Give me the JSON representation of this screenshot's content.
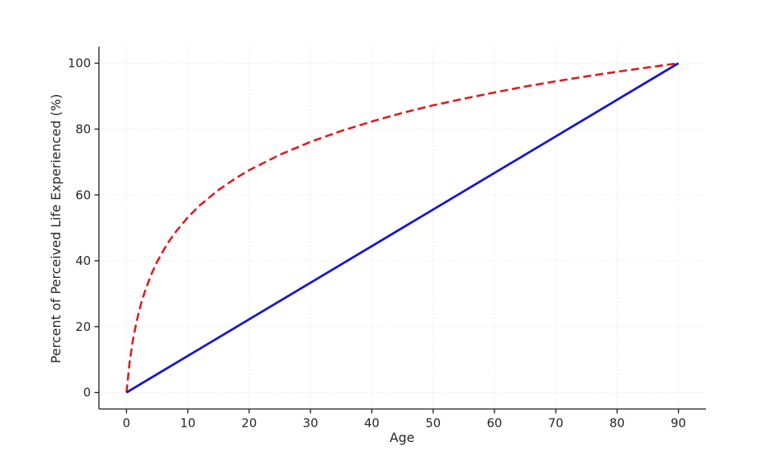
{
  "figure": {
    "background": "#ffffff",
    "text_color": "#262626",
    "spine_color": "#1a1a1a",
    "grid_color": "#e0e0e0"
  },
  "chart_data": {
    "type": "line",
    "title": "",
    "xlabel": "Age",
    "ylabel": "Percent of Perceived Life Experienced (%)",
    "xlim": [
      -4.5,
      94.5
    ],
    "ylim": [
      -5,
      105
    ],
    "xticks": [
      0,
      10,
      20,
      30,
      40,
      50,
      60,
      70,
      80,
      90
    ],
    "yticks": [
      0,
      20,
      40,
      60,
      80,
      100
    ],
    "grid": true,
    "grid_style": "dotted",
    "legend": "none",
    "series": [
      {
        "name": "red_dashed_log_perception_curve",
        "color": "#e01b1b",
        "style": "dashed",
        "width": 2.6,
        "x": [
          0,
          0.5,
          1,
          1.5,
          2,
          2.5,
          3,
          4,
          5,
          6,
          7,
          8,
          10,
          12,
          15,
          18,
          20,
          25,
          30,
          35,
          40,
          45,
          50,
          55,
          60,
          65,
          70,
          75,
          80,
          85,
          90
        ],
        "y": [
          0,
          9.0,
          15.4,
          20.3,
          24.4,
          27.8,
          30.7,
          35.7,
          39.7,
          43.1,
          46.1,
          48.7,
          53.2,
          56.9,
          61.5,
          65.3,
          67.5,
          72.2,
          76.1,
          79.4,
          82.3,
          84.9,
          87.2,
          89.2,
          91.1,
          92.9,
          94.5,
          96.0,
          97.4,
          98.7,
          100
        ]
      },
      {
        "name": "blue_solid_linear_line",
        "color": "#1717cf",
        "style": "solid",
        "width": 2.8,
        "x": [
          0,
          90
        ],
        "y": [
          0,
          100
        ]
      }
    ]
  }
}
